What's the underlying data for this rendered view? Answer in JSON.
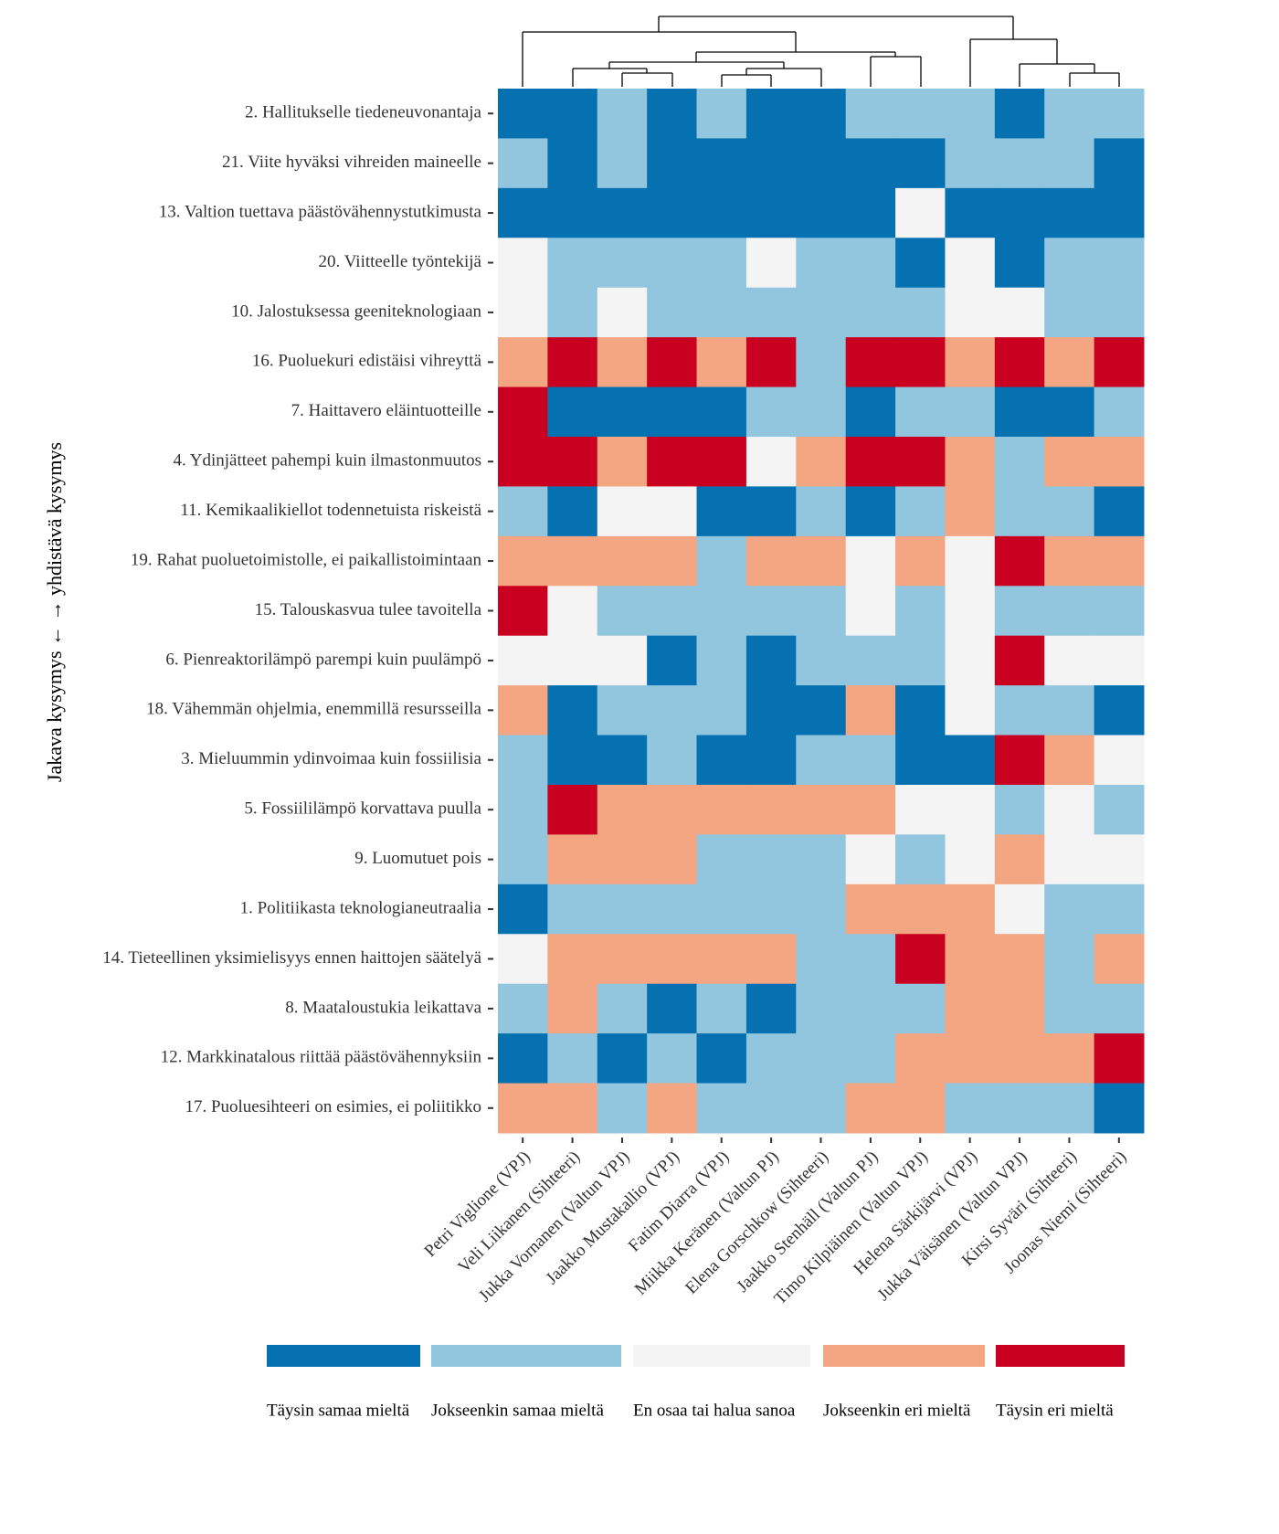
{
  "chart_data": {
    "type": "heatmap",
    "ylabel": "Jakava kysymys ← → yhdistävä kysymys",
    "rows": [
      "2. Hallitukselle tiedeneuvonantaja",
      "21. Viite hyväksi vihreiden maineelle",
      "13. Valtion tuettava päästövähennystutkimusta",
      "20. Viitteelle työntekijä",
      "10. Jalostuksessa geeniteknologiaan",
      "16. Puoluekuri edistäisi vihreyttä",
      "7. Haittavero eläintuotteille",
      "4. Ydinjätteet pahempi kuin ilmastonmuutos",
      "11. Kemikaalikiellot todennetuista riskeistä",
      "19. Rahat puoluetoimistolle, ei paikallistoimintaan",
      "15. Talouskasvua tulee tavoitella",
      "6. Pienreaktorilämpö parempi kuin puulämpö",
      "18. Vähemmän ohjelmia, enemmillä resursseilla",
      "3. Mieluummin ydinvoimaa kuin fossiilisia",
      "5. Fossiililämpö korvattava puulla",
      "9. Luomutuet pois",
      "1. Politiikasta teknologianeutraalia",
      "14. Tieteellinen yksimielisyys ennen haittojen säätelyä",
      "8. Maataloustukia leikattava",
      "12. Markkinatalous riittää päästövähennyksiin",
      "17. Puoluesihteeri on esimies, ei poliitikko"
    ],
    "columns": [
      "Petri Viglione (VPJ)",
      "Veli Liikanen (Sihteeri)",
      "Jukka Vornanen (Valtun VPJ)",
      "Jaakko Mustakallio (VPJ)",
      "Fatim Diarra (VPJ)",
      "Miikka Keränen (Valtun PJ)",
      "Elena Gorschkow (Sihteeri)",
      "Jaakko Stenhäll (Valtun PJ)",
      "Timo Kilpiäinen (Valtun VPJ)",
      "Helena Särkijärvi (VPJ)",
      "Jukka Väisänen (Valtun VPJ)",
      "Kirsi Syväri (Sihteeri)",
      "Joonas Niemi (Sihteeri)"
    ],
    "values": [
      [
        1,
        1,
        2,
        1,
        2,
        1,
        1,
        2,
        2,
        2,
        1,
        2,
        2
      ],
      [
        2,
        1,
        2,
        1,
        1,
        1,
        1,
        1,
        1,
        2,
        2,
        2,
        1
      ],
      [
        1,
        1,
        1,
        1,
        1,
        1,
        1,
        1,
        3,
        1,
        1,
        1,
        1
      ],
      [
        3,
        2,
        2,
        2,
        2,
        3,
        2,
        2,
        1,
        3,
        1,
        2,
        2
      ],
      [
        3,
        2,
        3,
        2,
        2,
        2,
        2,
        2,
        2,
        3,
        3,
        2,
        2
      ],
      [
        4,
        5,
        4,
        5,
        4,
        5,
        2,
        5,
        5,
        4,
        5,
        4,
        5
      ],
      [
        5,
        1,
        1,
        1,
        1,
        2,
        2,
        1,
        2,
        2,
        1,
        1,
        2
      ],
      [
        5,
        5,
        4,
        5,
        5,
        3,
        4,
        5,
        5,
        4,
        2,
        4,
        4
      ],
      [
        2,
        1,
        3,
        3,
        1,
        1,
        2,
        1,
        2,
        4,
        2,
        2,
        1
      ],
      [
        4,
        4,
        4,
        4,
        2,
        4,
        4,
        3,
        4,
        3,
        5,
        4,
        4
      ],
      [
        5,
        3,
        2,
        2,
        2,
        2,
        2,
        3,
        2,
        3,
        2,
        2,
        2
      ],
      [
        3,
        3,
        3,
        1,
        2,
        1,
        2,
        2,
        2,
        3,
        5,
        3,
        3
      ],
      [
        4,
        1,
        2,
        2,
        2,
        1,
        1,
        4,
        1,
        3,
        2,
        2,
        1
      ],
      [
        2,
        1,
        1,
        2,
        1,
        1,
        2,
        2,
        1,
        1,
        5,
        4,
        3
      ],
      [
        2,
        5,
        4,
        4,
        4,
        4,
        4,
        4,
        3,
        3,
        2,
        3,
        2
      ],
      [
        2,
        4,
        4,
        4,
        2,
        2,
        2,
        3,
        2,
        3,
        4,
        3,
        3
      ],
      [
        1,
        2,
        2,
        2,
        2,
        2,
        2,
        4,
        4,
        4,
        3,
        2,
        2
      ],
      [
        3,
        4,
        4,
        4,
        4,
        4,
        2,
        2,
        5,
        4,
        4,
        2,
        4
      ],
      [
        2,
        4,
        2,
        1,
        2,
        1,
        2,
        2,
        2,
        4,
        4,
        2,
        2
      ],
      [
        1,
        2,
        1,
        2,
        1,
        2,
        2,
        2,
        4,
        4,
        4,
        4,
        5
      ],
      [
        4,
        4,
        2,
        4,
        2,
        2,
        2,
        4,
        4,
        2,
        2,
        2,
        1
      ]
    ],
    "legend": {
      "labels": [
        "Täysin samaa mieltä",
        "Jokseenkin samaa mieltä",
        "En osaa tai halua sanoa",
        "Jokseenkin eri mieltä",
        "Täysin eri mieltä"
      ],
      "colors": [
        "#0571b0",
        "#92c5de",
        "#f4f4f4",
        "#f4a582",
        "#ca0020"
      ]
    }
  }
}
